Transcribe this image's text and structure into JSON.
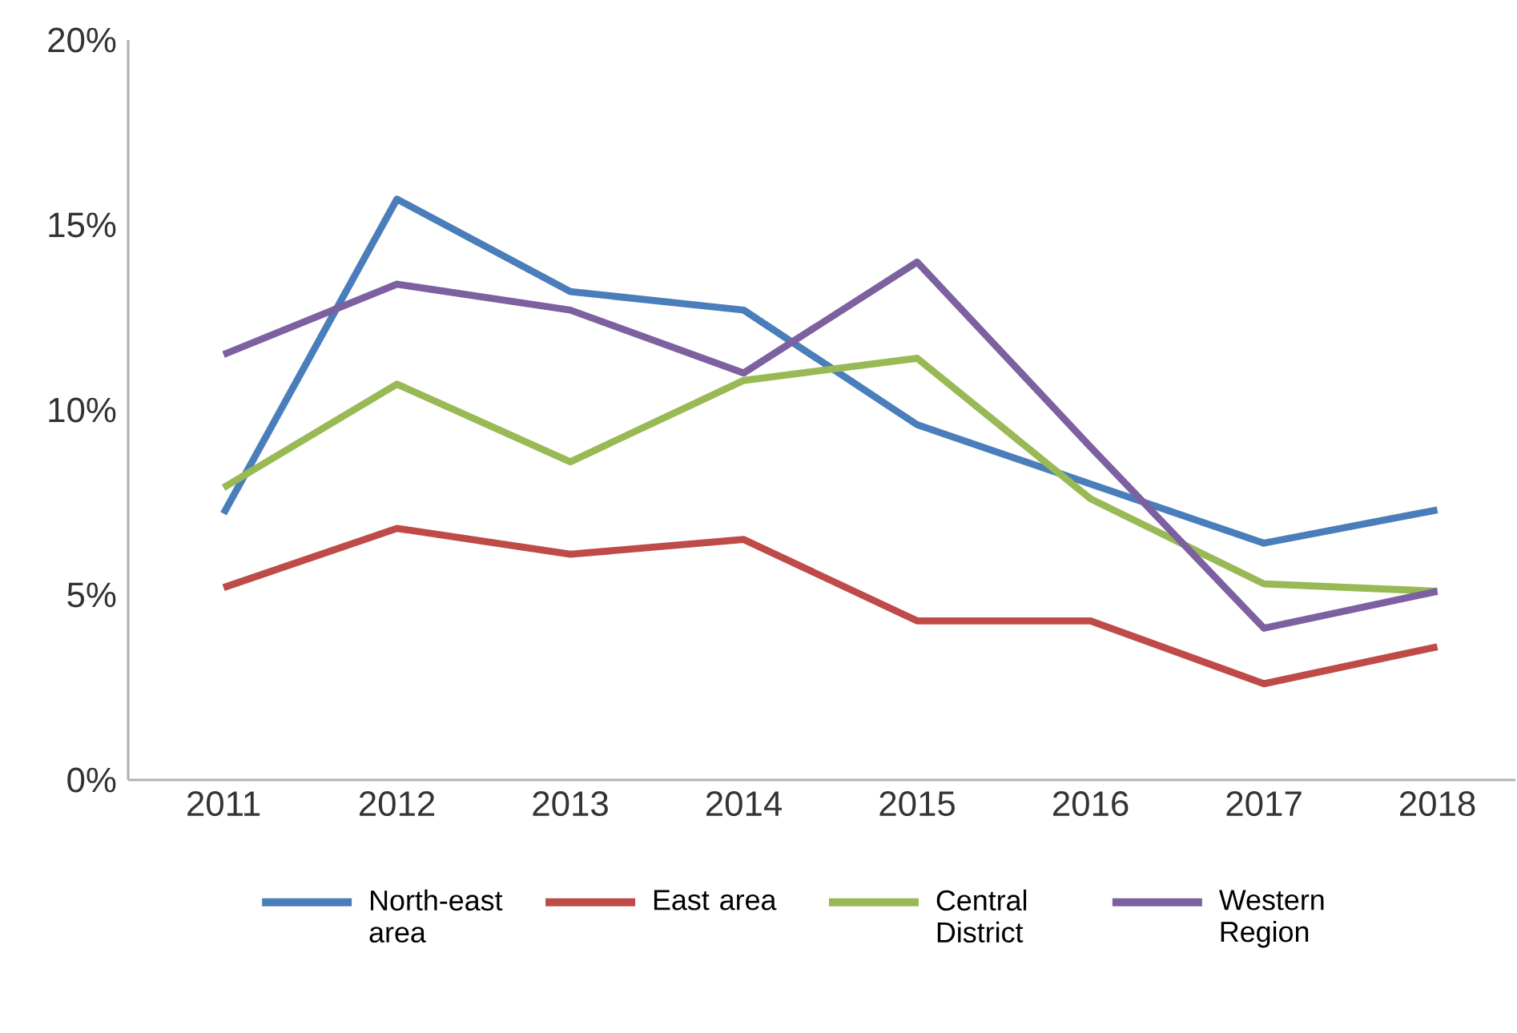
{
  "chart_data": {
    "type": "line",
    "categories": [
      "2011",
      "2012",
      "2013",
      "2014",
      "2015",
      "2016",
      "2017",
      "2018"
    ],
    "ylim": [
      0,
      20
    ],
    "yticks": [
      {
        "value": 0,
        "label": "0%"
      },
      {
        "value": 5,
        "label": "5%"
      },
      {
        "value": 10,
        "label": "10%"
      },
      {
        "value": 15,
        "label": "15%"
      },
      {
        "value": 20,
        "label": "20%"
      }
    ],
    "legend": "bottom",
    "series": [
      {
        "name": "North-east area",
        "color": "#4a7ebb",
        "values": [
          7.2,
          15.7,
          13.2,
          12.7,
          9.6,
          8.0,
          6.4,
          7.3
        ]
      },
      {
        "name": "East area",
        "color": "#be4b48",
        "values": [
          5.2,
          6.8,
          6.1,
          6.5,
          4.3,
          4.3,
          2.6,
          3.6
        ]
      },
      {
        "name": "Central District",
        "color": "#98b954",
        "values": [
          7.9,
          10.7,
          8.6,
          10.8,
          11.4,
          7.6,
          5.3,
          5.1
        ]
      },
      {
        "name": "Western Region",
        "color": "#7d60a0",
        "values": [
          11.5,
          13.4,
          12.7,
          11.0,
          14.0,
          9.0,
          4.1,
          5.1
        ]
      }
    ]
  }
}
